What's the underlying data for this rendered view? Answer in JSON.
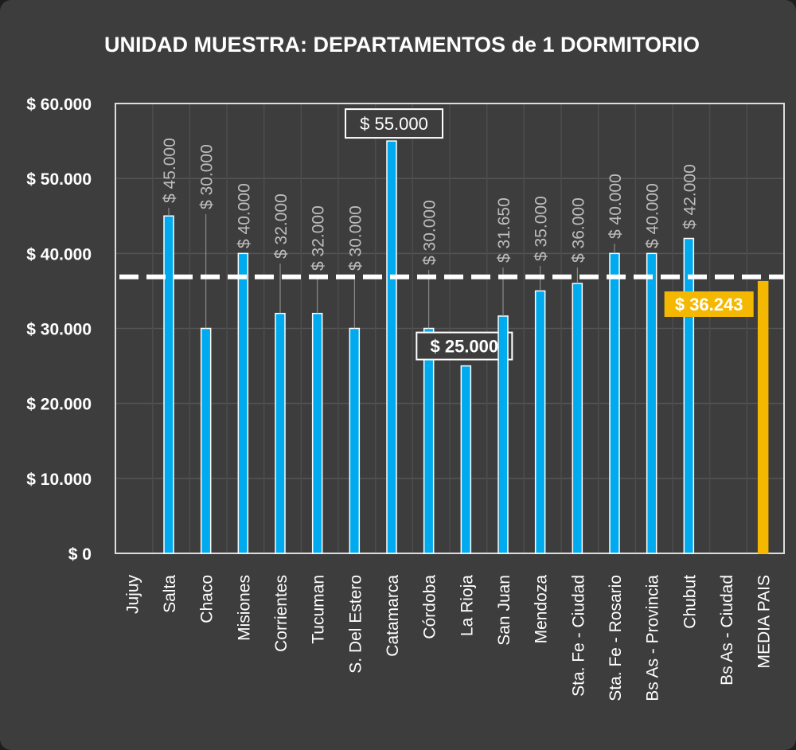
{
  "chart_data": {
    "type": "bar",
    "title": "UNIDAD MUESTRA: DEPARTAMENTOS  de 1 DORMITORIO",
    "xlabel": "",
    "ylabel": "",
    "ylim": [
      0,
      60000
    ],
    "yticks": [
      0,
      10000,
      20000,
      30000,
      40000,
      50000,
      60000
    ],
    "ytick_labels": [
      "$ 0",
      "$ 10.000",
      "$ 20.000",
      "$ 30.000",
      "$ 40.000",
      "$ 50.000",
      "$ 60.000"
    ],
    "grid": true,
    "categories": [
      "Jujuy",
      "Salta",
      "Chaco",
      "Misiones",
      "Corrientes",
      "Tucuman",
      "S. Del Estero",
      "Catamarca",
      "Córdoba",
      "La Rioja",
      "San Juan",
      "Mendoza",
      "Sta. Fe - Ciudad",
      "Sta. Fe - Rosario",
      "Bs As - Provincia",
      "Chubut",
      "Bs As - Ciudad",
      "MEDIA PAIS"
    ],
    "values": [
      null,
      45000,
      30000,
      40000,
      32000,
      32000,
      30000,
      55000,
      30000,
      25000,
      31650,
      35000,
      36000,
      40000,
      40000,
      42000,
      null,
      36243
    ],
    "data_labels": [
      "",
      "$ 45.000",
      "$ 30.000",
      "$ 40.000",
      "$ 32.000",
      "$ 32.000",
      "$ 30.000",
      "$ 55.000",
      "$ 30.000",
      "$ 25.000",
      "$ 31.650",
      "$ 35.000",
      "$ 36.000",
      "$ 40.000",
      "$ 40.000",
      "$ 42.000",
      "",
      "$ 36.243"
    ],
    "reference_line": {
      "value": 36243,
      "style": "dashed",
      "color": "#ffffff"
    },
    "colors": {
      "bar": "#00aaee",
      "highlight": "#f5b800",
      "background": "#3d3d3d",
      "text": "#ffffff",
      "label": "#bdbdbd"
    },
    "highlighted": {
      "max": "Catamarca",
      "min": "La Rioja",
      "mean": "MEDIA PAIS"
    }
  }
}
